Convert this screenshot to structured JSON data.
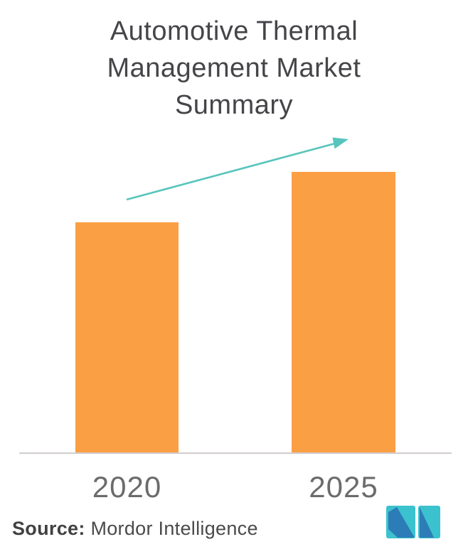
{
  "colors": {
    "background": "#FFFFFF",
    "bar": "#FA9F44",
    "arrow": "#57C5BC",
    "axis_line": "#D0CDCC",
    "title_text": "#454549",
    "year_label_text": "#6B6B6B",
    "source_text": "#4A4A4C",
    "logo_teal": "#3BC2CE",
    "logo_blue": "#2C7CB7"
  },
  "header": {
    "title": "Automotive Thermal Management Market Summary",
    "title_lines": [
      "Automotive Thermal",
      "Management Market",
      "Summary"
    ]
  },
  "chart_data": {
    "type": "bar",
    "title": "Automotive Thermal Management Market Summary",
    "categories": [
      "2020",
      "2025"
    ],
    "values": [
      82,
      100
    ],
    "values_note": "No numeric y-axis is rendered; values are relative bar heights with the 2025 bar indexed to 100.",
    "xlabel": "",
    "ylabel": "",
    "ylim": [
      0,
      100
    ],
    "grid": false,
    "legend": false,
    "bar_color": "#FA9F44",
    "annotations": [
      {
        "type": "arrow",
        "description": "upward growth trend arrow pointing from above the 2020 bar toward the 2025 bar",
        "color": "#57C5BC"
      }
    ]
  },
  "source": {
    "label": "Source:",
    "name": "Mordor Intelligence"
  },
  "logo": {
    "alt": "Mordor Intelligence logo"
  }
}
